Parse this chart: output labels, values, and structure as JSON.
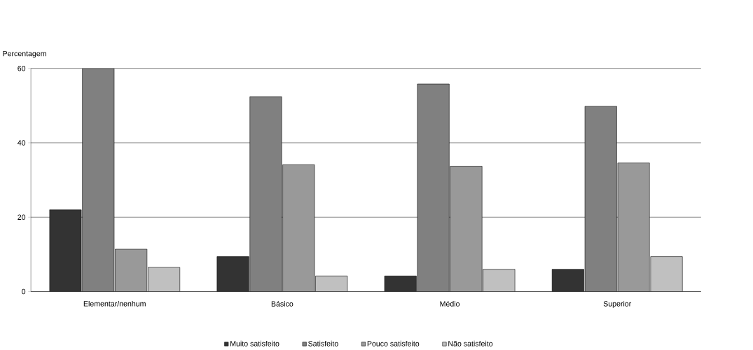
{
  "chart_data": {
    "type": "bar",
    "ylabel": "Percentagem",
    "categories": [
      "Elementar/nenhum",
      "Básico",
      "Médio",
      "Superior"
    ],
    "series": [
      {
        "name": "Muito satisfeito",
        "color": "#333333",
        "values": [
          22,
          9.4,
          4.2,
          6.0
        ]
      },
      {
        "name": "Satisfeito",
        "color": "#808080",
        "values": [
          60,
          52.4,
          55.8,
          49.8
        ]
      },
      {
        "name": "Pouco satisfeito",
        "color": "#999999",
        "values": [
          11.4,
          34.1,
          33.7,
          34.6
        ]
      },
      {
        "name": "Não satisfeito",
        "color": "#c0c0c0",
        "values": [
          6.5,
          4.2,
          6.0,
          9.4
        ]
      }
    ],
    "ylim": [
      0,
      60
    ],
    "yticks": [
      0,
      20,
      40,
      60
    ],
    "grid": "y",
    "legend": "bottom"
  }
}
